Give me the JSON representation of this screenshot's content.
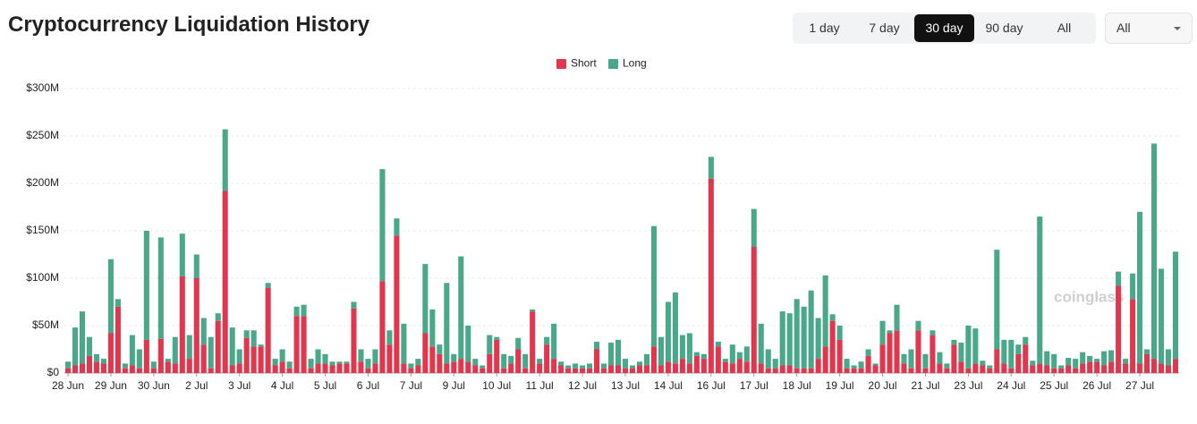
{
  "header": {
    "title": "Cryptocurrency Liquidation History",
    "range_buttons": [
      "1 day",
      "7 day",
      "30 day",
      "90 day",
      "All"
    ],
    "active_index": 2,
    "dropdown": "All"
  },
  "chart_data": {
    "type": "stacked_bar",
    "watermark": "coinglass",
    "categories": [
      "28 Jun",
      null,
      null,
      null,
      null,
      null,
      "29 Jun",
      null,
      null,
      null,
      null,
      null,
      "30 Jun",
      null,
      null,
      null,
      null,
      null,
      "2 Jul",
      null,
      null,
      null,
      null,
      null,
      "3 Jul",
      null,
      null,
      null,
      null,
      null,
      "4 Jul",
      null,
      null,
      null,
      null,
      null,
      "5 Jul",
      null,
      null,
      null,
      null,
      null,
      "6 Jul",
      null,
      null,
      null,
      null,
      null,
      "7 Jul",
      null,
      null,
      null,
      null,
      null,
      "9 Jul",
      null,
      null,
      null,
      null,
      null,
      "10 Jul",
      null,
      null,
      null,
      null,
      null,
      "11 Jul",
      null,
      null,
      null,
      null,
      null,
      "12 Jul",
      null,
      null,
      null,
      null,
      null,
      "13 Jul",
      null,
      null,
      null,
      null,
      null,
      "14 Jul",
      null,
      null,
      null,
      null,
      null,
      "16 Jul",
      null,
      null,
      null,
      null,
      null,
      "17 Jul",
      null,
      null,
      null,
      null,
      null,
      "18 Jul",
      null,
      null,
      null,
      null,
      null,
      "19 Jul",
      null,
      null,
      null,
      null,
      null,
      "20 Jul",
      null,
      null,
      null,
      null,
      null,
      "21 Jul",
      null,
      null,
      null,
      null,
      null,
      "23 Jul",
      null,
      null,
      null,
      null,
      null,
      "24 Jul",
      null,
      null,
      null,
      null,
      null,
      "25 Jul",
      null,
      null,
      null,
      null,
      null,
      "26 Jul",
      null,
      null,
      null,
      null,
      null,
      "27 Jul",
      null,
      null,
      null,
      null,
      null
    ],
    "series": [
      {
        "name": "Short",
        "color": "#e0374f",
        "values": [
          5,
          8,
          10,
          18,
          12,
          10,
          42,
          70,
          5,
          8,
          5,
          35,
          5,
          36,
          12,
          10,
          102,
          15,
          100,
          30,
          5,
          55,
          192,
          8,
          10,
          37,
          28,
          28,
          90,
          8,
          12,
          5,
          60,
          60,
          5,
          10,
          10,
          8,
          10,
          10,
          68,
          12,
          5,
          10,
          97,
          30,
          145,
          10,
          5,
          8,
          42,
          28,
          20,
          10,
          12,
          15,
          12,
          8,
          5,
          20,
          35,
          5,
          10,
          25,
          5,
          65,
          10,
          30,
          15,
          8,
          5,
          5,
          5,
          5,
          25,
          5,
          8,
          8,
          5,
          5,
          8,
          8,
          28,
          8,
          12,
          10,
          15,
          10,
          18,
          15,
          205,
          28,
          12,
          10,
          15,
          12,
          133,
          10,
          5,
          5,
          8,
          8,
          5,
          5,
          5,
          15,
          28,
          55,
          35,
          5,
          5,
          5,
          18,
          8,
          30,
          42,
          45,
          10,
          5,
          45,
          5,
          40,
          10,
          5,
          30,
          12,
          5,
          10,
          8,
          5,
          25,
          10,
          5,
          20,
          30,
          8,
          10,
          8,
          5,
          5,
          8,
          5,
          10,
          12,
          12,
          8,
          12,
          92,
          10,
          78,
          10,
          20,
          15,
          10,
          8,
          15
        ]
      },
      {
        "name": "Long",
        "color": "#4aa88a",
        "values": [
          7,
          40,
          55,
          20,
          8,
          5,
          78,
          8,
          5,
          32,
          20,
          115,
          7,
          107,
          3,
          28,
          45,
          25,
          25,
          28,
          33,
          8,
          65,
          40,
          15,
          8,
          17,
          2,
          5,
          7,
          13,
          7,
          10,
          12,
          10,
          15,
          10,
          4,
          2,
          2,
          7,
          13,
          10,
          15,
          118,
          15,
          18,
          42,
          5,
          7,
          73,
          39,
          10,
          85,
          8,
          108,
          38,
          7,
          3,
          20,
          3,
          15,
          8,
          12,
          15,
          2,
          5,
          8,
          37,
          4,
          3,
          5,
          3,
          5,
          8,
          5,
          24,
          27,
          10,
          3,
          4,
          12,
          127,
          30,
          63,
          75,
          25,
          32,
          4,
          5,
          23,
          5,
          3,
          20,
          7,
          16,
          40,
          42,
          20,
          10,
          57,
          55,
          73,
          65,
          82,
          43,
          75,
          7,
          15,
          10,
          3,
          7,
          7,
          2,
          25,
          3,
          27,
          10,
          20,
          10,
          15,
          5,
          12,
          5,
          5,
          20,
          45,
          37,
          5,
          3,
          105,
          25,
          30,
          10,
          8,
          5,
          155,
          15,
          15,
          3,
          8,
          10,
          12,
          6,
          3,
          15,
          12,
          15,
          5,
          27,
          160,
          5,
          227,
          100,
          17,
          113
        ]
      }
    ],
    "ylim": [
      0,
      300
    ],
    "yticks": [
      {
        "value": 0,
        "label": "$0"
      },
      {
        "value": 50,
        "label": "$50M"
      },
      {
        "value": 100,
        "label": "$100M"
      },
      {
        "value": 150,
        "label": "$150M"
      },
      {
        "value": 200,
        "label": "$200M"
      },
      {
        "value": 250,
        "label": "$250M"
      },
      {
        "value": 300,
        "label": "$300M"
      }
    ],
    "grid": true,
    "legend": "top"
  }
}
